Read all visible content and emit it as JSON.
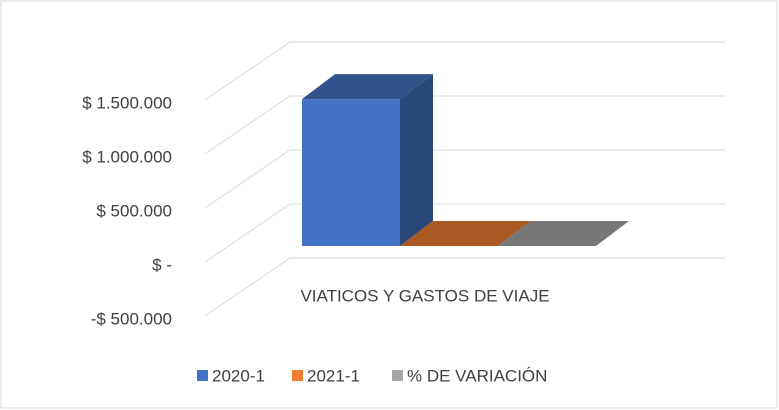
{
  "chart_data": {
    "type": "bar3d",
    "categories": [
      "VIATICOS Y GASTOS DE VIAJE"
    ],
    "series": [
      {
        "name": "2020-1",
        "color": "#4472c4",
        "values": [
          1360000
        ]
      },
      {
        "name": "2021-1",
        "color": "#ed7d31",
        "values": [
          0
        ]
      },
      {
        "name": "%  DE VARIACIÓN",
        "color": "#a5a5a5",
        "values": [
          0
        ]
      }
    ],
    "ylim": [
      -500000,
      1500000
    ],
    "yticks": [
      {
        "value": -500000,
        "label": "-$ 500.000"
      },
      {
        "value": 0,
        "label": "$ -"
      },
      {
        "value": 500000,
        "label": "$ 500.000"
      },
      {
        "value": 1000000,
        "label": "$ 1.000.000"
      },
      {
        "value": 1500000,
        "label": "$ 1.500.000"
      }
    ],
    "grid": true,
    "legend": "bottom"
  }
}
